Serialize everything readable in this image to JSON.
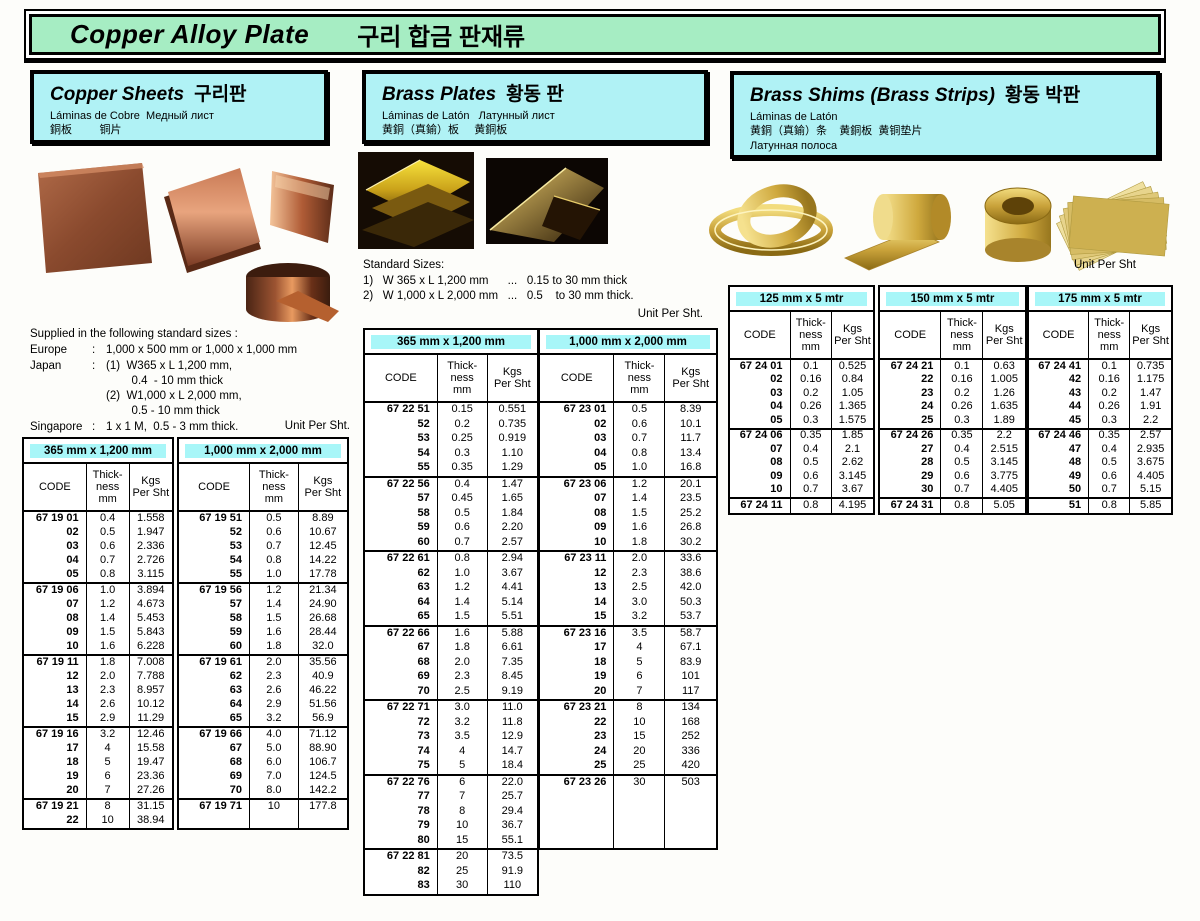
{
  "colors": {
    "banner_green": "#a6edc3",
    "header_cyan": "#b0f2f5",
    "size_chip_cyan": "#a8f6f8"
  },
  "banner": {
    "title_en": "Copper Alloy Plate",
    "title_local": "구리 합금 판재류"
  },
  "sections": {
    "copper": {
      "header": {
        "title_en": "Copper Sheets",
        "title_local": "구리판",
        "sub1": "Láminas de Cobre  Медный лист",
        "sub2": "銅板         铜片"
      },
      "supplied": {
        "title": "Supplied in the following standard sizes :",
        "rows": [
          {
            "label": "Europe",
            "sep": ":",
            "value": "1,000 x 500 mm or 1,000 x 1,000 mm"
          },
          {
            "label": "Japan",
            "sep": ":",
            "value": "(1)  W365 x L 1,200 mm,\n        0.4  - 10 mm thick\n(2)  W1,000 x L 2,000 mm,\n        0.5 - 10 mm thick"
          },
          {
            "label": "Singapore",
            "sep": ":",
            "value": "1 x 1 M,  0.5 - 3 mm thick."
          }
        ],
        "unit_note": "Unit Per Sht."
      },
      "tables": [
        {
          "size": "365 mm x 1,200 mm",
          "columns": [
            "CODE",
            "Thick-\nness\nmm",
            "Kgs\nPer Sht"
          ],
          "groups": [
            [
              [
                "67 19 01",
                "0.4",
                "1.558"
              ],
              [
                "02",
                "0.5",
                "1.947"
              ],
              [
                "03",
                "0.6",
                "2.336"
              ],
              [
                "04",
                "0.7",
                "2.726"
              ],
              [
                "05",
                "0.8",
                "3.115"
              ]
            ],
            [
              [
                "67 19 06",
                "1.0",
                "3.894"
              ],
              [
                "07",
                "1.2",
                "4.673"
              ],
              [
                "08",
                "1.4",
                "5.453"
              ],
              [
                "09",
                "1.5",
                "5.843"
              ],
              [
                "10",
                "1.6",
                "6.228"
              ]
            ],
            [
              [
                "67 19 11",
                "1.8",
                "7.008"
              ],
              [
                "12",
                "2.0",
                "7.788"
              ],
              [
                "13",
                "2.3",
                "8.957"
              ],
              [
                "14",
                "2.6",
                "10.12"
              ],
              [
                "15",
                "2.9",
                "11.29"
              ]
            ],
            [
              [
                "67 19 16",
                "3.2",
                "12.46"
              ],
              [
                "17",
                "4",
                "15.58"
              ],
              [
                "18",
                "5",
                "19.47"
              ],
              [
                "19",
                "6",
                "23.36"
              ],
              [
                "20",
                "7",
                "27.26"
              ]
            ],
            [
              [
                "67 19 21",
                "8",
                "31.15"
              ],
              [
                "22",
                "10",
                "38.94"
              ]
            ]
          ]
        },
        {
          "size": "1,000 mm x 2,000 mm",
          "columns": [
            "CODE",
            "Thick-\nness\nmm",
            "Kgs\nPer Sht"
          ],
          "groups": [
            [
              [
                "67 19 51",
                "0.5",
                "8.89"
              ],
              [
                "52",
                "0.6",
                "10.67"
              ],
              [
                "53",
                "0.7",
                "12.45"
              ],
              [
                "54",
                "0.8",
                "14.22"
              ],
              [
                "55",
                "1.0",
                "17.78"
              ]
            ],
            [
              [
                "67 19 56",
                "1.2",
                "21.34"
              ],
              [
                "57",
                "1.4",
                "24.90"
              ],
              [
                "58",
                "1.5",
                "26.68"
              ],
              [
                "59",
                "1.6",
                "28.44"
              ],
              [
                "60",
                "1.8",
                "32.0"
              ]
            ],
            [
              [
                "67 19 61",
                "2.0",
                "35.56"
              ],
              [
                "62",
                "2.3",
                "40.9"
              ],
              [
                "63",
                "2.6",
                "46.22"
              ],
              [
                "64",
                "2.9",
                "51.56"
              ],
              [
                "65",
                "3.2",
                "56.9"
              ]
            ],
            [
              [
                "67 19 66",
                "4.0",
                "71.12"
              ],
              [
                "67",
                "5.0",
                "88.90"
              ],
              [
                "68",
                "6.0",
                "106.7"
              ],
              [
                "69",
                "7.0",
                "124.5"
              ],
              [
                "70",
                "8.0",
                "142.2"
              ]
            ],
            [
              [
                "67 19 71",
                "10",
                "177.8"
              ],
              [
                "",
                "",
                ""
              ]
            ]
          ]
        }
      ]
    },
    "brass_plates": {
      "header": {
        "title_en": "Brass Plates",
        "title_local": "황동 판",
        "sub1": "Láminas de Latón   Латунный лист",
        "sub2": "黄銅（真鍮）板     黄銅板"
      },
      "standard_sizes": {
        "title": "Standard Sizes:",
        "lines": [
          "1)   W 365 x L 1,200 mm      ...   0.15 to 30 mm thick",
          "2)   W 1,000 x L 2,000 mm   ...   0.5    to 30 mm thick."
        ],
        "unit_note": "Unit Per Sht."
      },
      "tables": [
        {
          "size": "365 mm x 1,200 mm",
          "columns": [
            "CODE",
            "Thick-\nness\nmm",
            "Kgs\nPer Sht"
          ],
          "groups": [
            [
              [
                "67 22 51",
                "0.15",
                "0.551"
              ],
              [
                "52",
                "0.2",
                "0.735"
              ],
              [
                "53",
                "0.25",
                "0.919"
              ],
              [
                "54",
                "0.3",
                "1.10"
              ],
              [
                "55",
                "0.35",
                "1.29"
              ]
            ],
            [
              [
                "67 22 56",
                "0.4",
                "1.47"
              ],
              [
                "57",
                "0.45",
                "1.65"
              ],
              [
                "58",
                "0.5",
                "1.84"
              ],
              [
                "59",
                "0.6",
                "2.20"
              ],
              [
                "60",
                "0.7",
                "2.57"
              ]
            ],
            [
              [
                "67 22 61",
                "0.8",
                "2.94"
              ],
              [
                "62",
                "1.0",
                "3.67"
              ],
              [
                "63",
                "1.2",
                "4.41"
              ],
              [
                "64",
                "1.4",
                "5.14"
              ],
              [
                "65",
                "1.5",
                "5.51"
              ]
            ],
            [
              [
                "67 22 66",
                "1.6",
                "5.88"
              ],
              [
                "67",
                "1.8",
                "6.61"
              ],
              [
                "68",
                "2.0",
                "7.35"
              ],
              [
                "69",
                "2.3",
                "8.45"
              ],
              [
                "70",
                "2.5",
                "9.19"
              ]
            ],
            [
              [
                "67 22 71",
                "3.0",
                "11.0"
              ],
              [
                "72",
                "3.2",
                "11.8"
              ],
              [
                "73",
                "3.5",
                "12.9"
              ],
              [
                "74",
                "4",
                "14.7"
              ],
              [
                "75",
                "5",
                "18.4"
              ]
            ],
            [
              [
                "67 22 76",
                "6",
                "22.0"
              ],
              [
                "77",
                "7",
                "25.7"
              ],
              [
                "78",
                "8",
                "29.4"
              ],
              [
                "79",
                "10",
                "36.7"
              ],
              [
                "80",
                "15",
                "55.1"
              ]
            ],
            [
              [
                "67 22 81",
                "20",
                "73.5"
              ],
              [
                "82",
                "25",
                "91.9"
              ],
              [
                "83",
                "30",
                "110"
              ]
            ]
          ]
        },
        {
          "size": "1,000 mm x 2,000 mm",
          "columns": [
            "CODE",
            "Thick-\nness\nmm",
            "Kgs\nPer Sht"
          ],
          "groups": [
            [
              [
                "67 23 01",
                "0.5",
                "8.39"
              ],
              [
                "02",
                "0.6",
                "10.1"
              ],
              [
                "03",
                "0.7",
                "11.7"
              ],
              [
                "04",
                "0.8",
                "13.4"
              ],
              [
                "05",
                "1.0",
                "16.8"
              ]
            ],
            [
              [
                "67 23 06",
                "1.2",
                "20.1"
              ],
              [
                "07",
                "1.4",
                "23.5"
              ],
              [
                "08",
                "1.5",
                "25.2"
              ],
              [
                "09",
                "1.6",
                "26.8"
              ],
              [
                "10",
                "1.8",
                "30.2"
              ]
            ],
            [
              [
                "67 23 11",
                "2.0",
                "33.6"
              ],
              [
                "12",
                "2.3",
                "38.6"
              ],
              [
                "13",
                "2.5",
                "42.0"
              ],
              [
                "14",
                "3.0",
                "50.3"
              ],
              [
                "15",
                "3.2",
                "53.7"
              ]
            ],
            [
              [
                "67 23 16",
                "3.5",
                "58.7"
              ],
              [
                "17",
                "4",
                "67.1"
              ],
              [
                "18",
                "5",
                "83.9"
              ],
              [
                "19",
                "6",
                "101"
              ],
              [
                "20",
                "7",
                "117"
              ]
            ],
            [
              [
                "67 23 21",
                "8",
                "134"
              ],
              [
                "22",
                "10",
                "168"
              ],
              [
                "23",
                "15",
                "252"
              ],
              [
                "24",
                "20",
                "336"
              ],
              [
                "25",
                "25",
                "420"
              ]
            ],
            [
              [
                "67 23 26",
                "30",
                "503"
              ],
              [
                "",
                "",
                ""
              ],
              [
                "",
                "",
                ""
              ],
              [
                "",
                "",
                ""
              ],
              [
                "",
                "",
                ""
              ]
            ]
          ]
        }
      ]
    },
    "brass_shims": {
      "header": {
        "title_en": "Brass Shims (Brass Strips)",
        "title_local": "황동 박판",
        "sub1": "Láminas de Latón",
        "sub2": "黄銅（真鍮）条    黄銅板  黄铜垫片",
        "sub3": "Латунная полоса"
      },
      "unit_note": "Unit Per Sht",
      "tables": [
        {
          "size": "125 mm x 5 mtr",
          "columns": [
            "CODE",
            "Thick-\nness\nmm",
            "Kgs\nPer Sht"
          ],
          "groups": [
            [
              [
                "67 24 01",
                "0.1",
                "0.525"
              ],
              [
                "02",
                "0.16",
                "0.84"
              ],
              [
                "03",
                "0.2",
                "1.05"
              ],
              [
                "04",
                "0.26",
                "1.365"
              ],
              [
                "05",
                "0.3",
                "1.575"
              ]
            ],
            [
              [
                "67 24 06",
                "0.35",
                "1.85"
              ],
              [
                "07",
                "0.4",
                "2.1"
              ],
              [
                "08",
                "0.5",
                "2.62"
              ],
              [
                "09",
                "0.6",
                "3.145"
              ],
              [
                "10",
                "0.7",
                "3.67"
              ]
            ],
            [
              [
                "67 24 11",
                "0.8",
                "4.195"
              ]
            ]
          ]
        },
        {
          "size": "150 mm x 5 mtr",
          "columns": [
            "CODE",
            "Thick-\nness\nmm",
            "Kgs\nPer Sht"
          ],
          "groups": [
            [
              [
                "67 24 21",
                "0.1",
                "0.63"
              ],
              [
                "22",
                "0.16",
                "1.005"
              ],
              [
                "23",
                "0.2",
                "1.26"
              ],
              [
                "24",
                "0.26",
                "1.635"
              ],
              [
                "25",
                "0.3",
                "1.89"
              ]
            ],
            [
              [
                "67 24 26",
                "0.35",
                "2.2"
              ],
              [
                "27",
                "0.4",
                "2.515"
              ],
              [
                "28",
                "0.5",
                "3.145"
              ],
              [
                "29",
                "0.6",
                "3.775"
              ],
              [
                "30",
                "0.7",
                "4.405"
              ]
            ],
            [
              [
                "67 24 31",
                "0.8",
                "5.05"
              ]
            ]
          ]
        },
        {
          "size": "175 mm x 5 mtr",
          "columns": [
            "CODE",
            "Thick-\nness\nmm",
            "Kgs\nPer Sht"
          ],
          "groups": [
            [
              [
                "67 24 41",
                "0.1",
                "0.735"
              ],
              [
                "42",
                "0.16",
                "1.175"
              ],
              [
                "43",
                "0.2",
                "1.47"
              ],
              [
                "44",
                "0.26",
                "1.91"
              ],
              [
                "45",
                "0.3",
                "2.2"
              ]
            ],
            [
              [
                "67 24 46",
                "0.35",
                "2.57"
              ],
              [
                "47",
                "0.4",
                "2.935"
              ],
              [
                "48",
                "0.5",
                "3.675"
              ],
              [
                "49",
                "0.6",
                "4.405"
              ],
              [
                "50",
                "0.7",
                "5.15"
              ]
            ],
            [
              [
                "51",
                "0.8",
                "5.85"
              ]
            ]
          ]
        }
      ]
    }
  }
}
